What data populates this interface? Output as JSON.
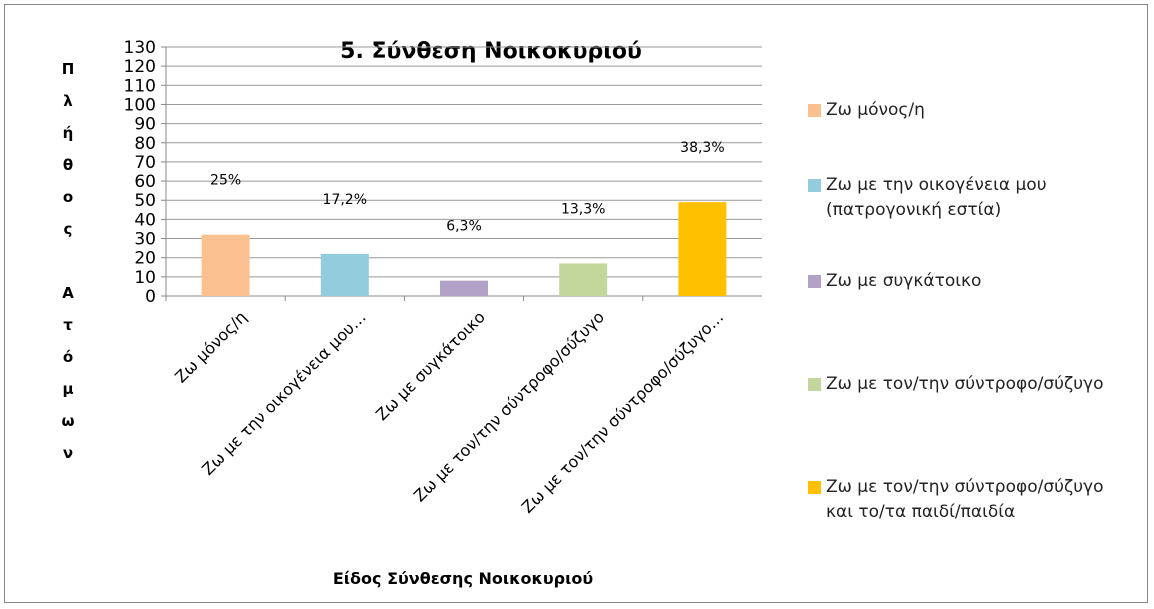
{
  "chart_data": {
    "type": "bar",
    "title": "5. Σύνθεση Νοικοκυριού",
    "x_label": "Είδος Σύνθεσης Νοικοκυριού",
    "y_label": "Πλήθος Ατόμων",
    "categories": [
      "Ζω μόνος/η",
      "Ζω με την οικογένεια μου…",
      "Ζω με συγκάτοικο",
      "Ζω με τον/την σύντροφο/σύζυγο",
      "Ζω με τον/την σύντροφο/σύζυγο…"
    ],
    "values": [
      32,
      22,
      8,
      17,
      49
    ],
    "colors": [
      "#fac090",
      "#93cddd",
      "#b3a2c7",
      "#c3d69b",
      "#ffc000"
    ],
    "data_labels": {
      "values": [
        25,
        17.2,
        6.3,
        13.3,
        38.3
      ],
      "value_labels": [
        "25%",
        "17,2%",
        "6,3%",
        "13,3%",
        "38,3%"
      ]
    },
    "legend": [
      "Ζω μόνος/η",
      "Ζω με την οικογένεια μου (πατρογονική εστία)",
      "Ζω με συγκάτοικο",
      "Ζω με τον/την σύντροφο/σύζυγο",
      "Ζω με τον/την σύντροφο/σύζυγο και το/τα παιδί/παιδία"
    ],
    "legend_position": "right",
    "ylim": [
      0,
      130
    ],
    "yticks": [
      0,
      10,
      20,
      30,
      40,
      50,
      60,
      70,
      80,
      90,
      100,
      110,
      120,
      130
    ],
    "grid": true
  }
}
